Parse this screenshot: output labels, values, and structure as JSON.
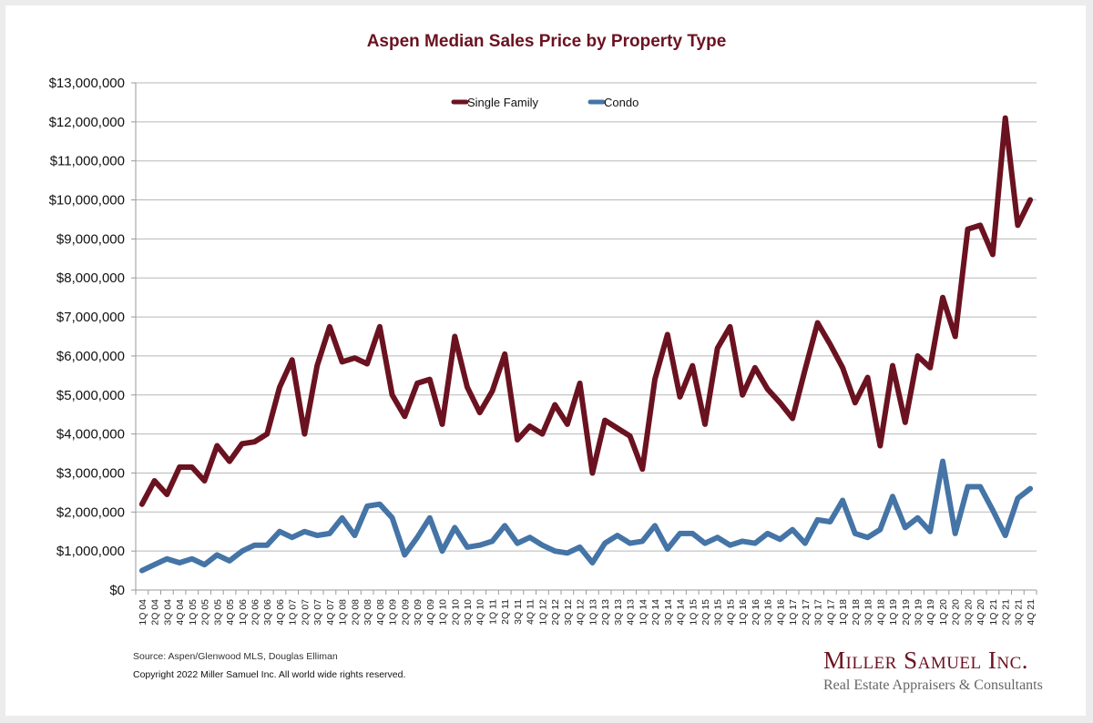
{
  "chart_data": {
    "type": "line",
    "title": "Aspen Median Sales Price by Property Type",
    "xlabel": "",
    "ylabel": "",
    "ylim": [
      0,
      13000000
    ],
    "yticks": [
      0,
      1000000,
      2000000,
      3000000,
      4000000,
      5000000,
      6000000,
      7000000,
      8000000,
      9000000,
      10000000,
      11000000,
      12000000,
      13000000
    ],
    "ytick_labels": [
      "$0",
      "$1,000,000",
      "$2,000,000",
      "$3,000,000",
      "$4,000,000",
      "$5,000,000",
      "$6,000,000",
      "$7,000,000",
      "$8,000,000",
      "$9,000,000",
      "$10,000,000",
      "$11,000,000",
      "$12,000,000",
      "$13,000,000"
    ],
    "grid": true,
    "legend_position": "top-center",
    "x": [
      "1Q 04",
      "2Q 04",
      "3Q 04",
      "4Q 04",
      "1Q 05",
      "2Q 05",
      "3Q 05",
      "4Q 05",
      "1Q 06",
      "2Q 06",
      "3Q 06",
      "4Q 06",
      "1Q 07",
      "2Q 07",
      "3Q 07",
      "4Q 07",
      "1Q 08",
      "2Q 08",
      "3Q 08",
      "4Q 08",
      "1Q 09",
      "2Q 09",
      "3Q 09",
      "4Q 09",
      "1Q 10",
      "2Q 10",
      "3Q 10",
      "4Q 10",
      "1Q 11",
      "2Q 11",
      "3Q 11",
      "4Q 11",
      "1Q 12",
      "2Q 12",
      "3Q 12",
      "4Q 12",
      "1Q 13",
      "2Q 13",
      "3Q 13",
      "4Q 13",
      "1Q 14",
      "2Q 14",
      "3Q 14",
      "4Q 14",
      "1Q 15",
      "2Q 15",
      "3Q 15",
      "4Q 15",
      "1Q 16",
      "2Q 16",
      "3Q 16",
      "4Q 16",
      "1Q 17",
      "2Q 17",
      "3Q 17",
      "4Q 17",
      "1Q 18",
      "2Q 18",
      "3Q 18",
      "4Q 18",
      "1Q 19",
      "2Q 19",
      "3Q 19",
      "4Q 19",
      "1Q 20",
      "2Q 20",
      "3Q 20",
      "4Q 20",
      "1Q 21",
      "2Q 21",
      "3Q 21",
      "4Q 21"
    ],
    "series": [
      {
        "name": "Single Family",
        "color": "#6b1220",
        "values": [
          2200000,
          2800000,
          2450000,
          3150000,
          3150000,
          2800000,
          3700000,
          3300000,
          3750000,
          3800000,
          4000000,
          5200000,
          5900000,
          4000000,
          5750000,
          6750000,
          5850000,
          5950000,
          5800000,
          6750000,
          5000000,
          4450000,
          5300000,
          5400000,
          4250000,
          6500000,
          5200000,
          4550000,
          5100000,
          6050000,
          3850000,
          4200000,
          4000000,
          4750000,
          4250000,
          5300000,
          3000000,
          4350000,
          4150000,
          3950000,
          3100000,
          5400000,
          6550000,
          4950000,
          5750000,
          4250000,
          6200000,
          6750000,
          5000000,
          5700000,
          5150000,
          4800000,
          4400000,
          5650000,
          6850000,
          6300000,
          5700000,
          4800000,
          5450000,
          3700000,
          5750000,
          4300000,
          6000000,
          5700000,
          7500000,
          6500000,
          9250000,
          9350000,
          8600000,
          12100000,
          9350000,
          10000000
        ]
      },
      {
        "name": "Condo",
        "color": "#4574a6",
        "values": [
          500000,
          650000,
          800000,
          700000,
          800000,
          650000,
          900000,
          750000,
          1000000,
          1150000,
          1150000,
          1500000,
          1350000,
          1500000,
          1400000,
          1450000,
          1850000,
          1400000,
          2150000,
          2200000,
          1850000,
          900000,
          1350000,
          1850000,
          1000000,
          1600000,
          1100000,
          1150000,
          1250000,
          1650000,
          1200000,
          1350000,
          1150000,
          1000000,
          950000,
          1100000,
          700000,
          1200000,
          1400000,
          1200000,
          1250000,
          1650000,
          1050000,
          1450000,
          1450000,
          1200000,
          1350000,
          1150000,
          1250000,
          1200000,
          1450000,
          1300000,
          1550000,
          1200000,
          1800000,
          1750000,
          2300000,
          1450000,
          1350000,
          1550000,
          2400000,
          1600000,
          1850000,
          1500000,
          3300000,
          1450000,
          2650000,
          2650000,
          2050000,
          1400000,
          2350000,
          2600000
        ]
      }
    ]
  },
  "footer": {
    "source": "Source: Aspen/Glenwood MLS, Douglas Elliman",
    "copyright": "Copyright 2022 Miller Samuel Inc.  All world wide rights reserved."
  },
  "brand": {
    "name": "Miller Samuel Inc.",
    "tagline": "Real Estate Appraisers & Consultants"
  }
}
